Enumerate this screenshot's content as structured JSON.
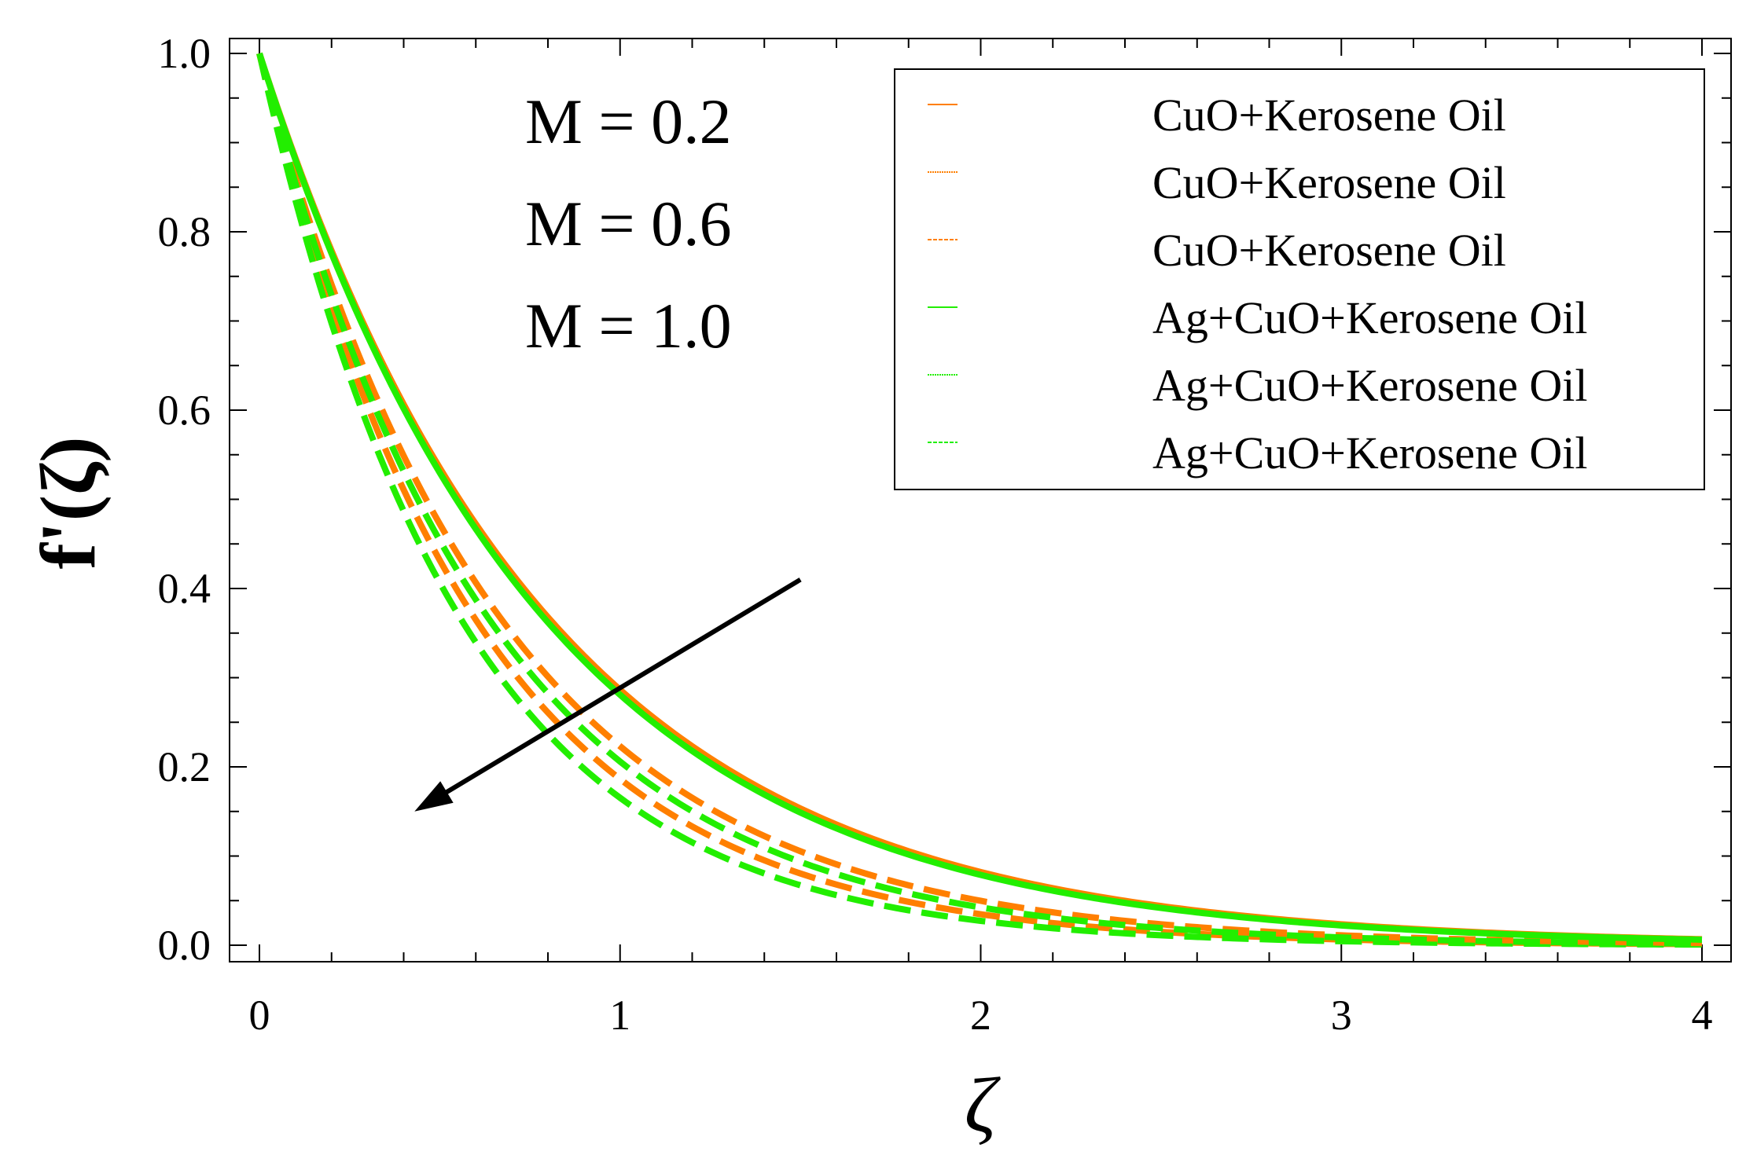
{
  "chart_data": {
    "type": "line",
    "title": "",
    "xlabel": "ζ",
    "ylabel": "f'(ζ)",
    "xlim": [
      0,
      4
    ],
    "ylim": [
      0,
      1
    ],
    "xticks": [
      "0",
      "1",
      "2",
      "3",
      "4"
    ],
    "yticks": [
      "0.0",
      "0.2",
      "0.4",
      "0.6",
      "0.8",
      "1.0"
    ],
    "grid": false,
    "legend_position": "top-right",
    "annotations": [
      "M = 0.2",
      "M = 0.6",
      "M = 1.0"
    ],
    "arrow": {
      "from": [
        1.5,
        0.41
      ],
      "to": [
        0.43,
        0.15
      ],
      "meaning": "increasing M"
    },
    "series": [
      {
        "name": "CuO+Kerosene Oil",
        "M": 0.2,
        "style": "solid",
        "color": "#ff7f00",
        "decay": 1.25
      },
      {
        "name": "CuO+Kerosene Oil",
        "M": 0.6,
        "style": "dashed",
        "color": "#ff7f00",
        "decay": 1.5
      },
      {
        "name": "CuO+Kerosene Oil",
        "M": 1.0,
        "style": "dashed",
        "color": "#ff7f00",
        "decay": 1.68
      },
      {
        "name": "Ag+CuO+Kerosene Oil",
        "M": 0.2,
        "style": "solid",
        "color": "#22ee00",
        "decay": 1.27
      },
      {
        "name": "Ag+CuO+Kerosene Oil",
        "M": 0.6,
        "style": "dashed",
        "color": "#22ee00",
        "decay": 1.58
      },
      {
        "name": "Ag+CuO+Kerosene Oil",
        "M": 1.0,
        "style": "dashed",
        "color": "#22ee00",
        "decay": 1.8
      }
    ]
  }
}
